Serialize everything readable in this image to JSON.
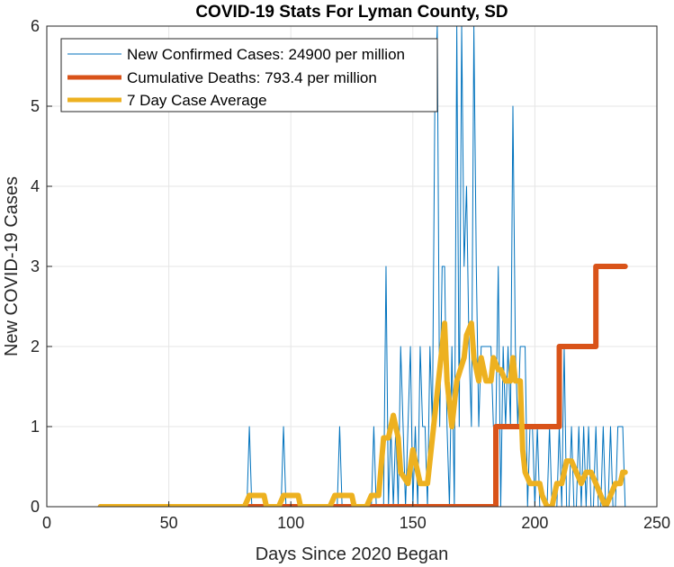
{
  "chart_data": {
    "type": "line",
    "title": "COVID-19 Stats For Lyman County, SD",
    "xlabel": "Days Since 2020 Began",
    "ylabel": "New COVID-19 Cases",
    "xlim": [
      0,
      250
    ],
    "ylim": [
      0,
      6
    ],
    "xticks": [
      0,
      50,
      100,
      150,
      200,
      250
    ],
    "yticks": [
      0,
      1,
      2,
      3,
      4,
      5,
      6
    ],
    "grid": true,
    "legend_position": "top-left",
    "series": [
      {
        "name": "New Confirmed Cases: 24900 per million",
        "color": "#0072BD",
        "x": [
          22,
          82,
          83,
          84,
          96,
          97,
          98,
          119,
          120,
          121,
          133,
          134,
          135,
          138,
          139,
          140,
          141,
          142,
          143,
          144,
          145,
          146,
          147,
          148,
          149,
          150,
          151,
          152,
          153,
          154,
          155,
          156,
          157,
          158,
          159,
          160,
          161,
          162,
          163,
          164,
          165,
          166,
          167,
          168,
          169,
          170,
          171,
          172,
          173,
          174,
          175,
          176,
          177,
          178,
          179,
          180,
          181,
          182,
          183,
          184,
          185,
          186,
          187,
          188,
          189,
          190,
          191,
          192,
          193,
          194,
          195,
          196,
          197,
          198,
          199,
          200,
          201,
          202,
          203,
          204,
          205,
          206,
          207,
          208,
          209,
          210,
          211,
          212,
          213,
          214,
          215,
          216,
          217,
          218,
          219,
          220,
          221,
          222,
          223,
          224,
          225,
          226,
          227,
          228,
          229,
          230,
          231,
          232,
          233,
          234,
          235,
          236,
          237
        ],
        "y": [
          0,
          0,
          1,
          0,
          0,
          1,
          0,
          0,
          1,
          0,
          0,
          1,
          0,
          0,
          3,
          0,
          1,
          0,
          1,
          0,
          2,
          1,
          0,
          1,
          2,
          0,
          1,
          0,
          2,
          1,
          1,
          0,
          2,
          1,
          5,
          6,
          1,
          3,
          3,
          1,
          0,
          2,
          0,
          6,
          1,
          6,
          3,
          4,
          2,
          1,
          6,
          3,
          1,
          2,
          2,
          2,
          2,
          2,
          1,
          1,
          3,
          0,
          2,
          1,
          2,
          1,
          5,
          2,
          1,
          2,
          2,
          2,
          0,
          1,
          1,
          0,
          1,
          0,
          0,
          0,
          0,
          1,
          0,
          0,
          0,
          1,
          0,
          2,
          0,
          0,
          1,
          0,
          0,
          1,
          0,
          1,
          0,
          1,
          0,
          0,
          1,
          0,
          0,
          1,
          0,
          0,
          1,
          0,
          0,
          1,
          1,
          1,
          0
        ]
      },
      {
        "name": "Cumulative Deaths: 793.4 per million",
        "color": "#D95319",
        "x": [
          22,
          184,
          184,
          210,
          210,
          225,
          225,
          237
        ],
        "y": [
          0,
          0,
          1,
          1,
          2,
          2,
          3,
          3
        ]
      },
      {
        "name": "7 Day Case Average",
        "color": "#EDB120",
        "x": [
          22,
          81,
          83,
          85,
          89,
          90,
          95,
          97,
          99,
          103,
          104,
          116,
          118,
          121,
          125,
          126,
          131,
          133,
          136,
          138,
          140,
          142,
          144,
          145,
          148,
          150,
          153,
          156,
          159,
          160,
          162,
          163,
          164,
          166,
          168,
          171,
          172,
          174,
          175,
          177,
          178,
          180,
          182,
          183,
          185,
          186,
          188,
          190,
          191,
          192,
          193,
          194,
          195,
          196,
          198,
          200,
          202,
          203,
          205,
          207,
          209,
          211,
          213,
          215,
          217,
          219,
          221,
          223,
          225,
          227,
          229,
          231,
          233,
          235,
          236,
          237
        ],
        "y": [
          0,
          0,
          0.14,
          0.14,
          0.14,
          0,
          0,
          0.14,
          0.14,
          0.14,
          0,
          0,
          0.14,
          0.14,
          0.14,
          0,
          0,
          0.14,
          0.14,
          0.86,
          0.86,
          1.14,
          0.86,
          0.43,
          0.29,
          0.71,
          0.29,
          0.29,
          1.14,
          1.43,
          2.0,
          2.29,
          1.57,
          1.0,
          1.57,
          1.86,
          2.14,
          2.29,
          1.86,
          1.57,
          1.86,
          1.57,
          1.57,
          1.86,
          1.71,
          1.71,
          1.57,
          1.57,
          1.86,
          1.57,
          1.57,
          1.57,
          0.71,
          0.43,
          0.29,
          0.29,
          0.29,
          0.14,
          0.0,
          0.0,
          0.29,
          0.29,
          0.57,
          0.57,
          0.43,
          0.29,
          0.43,
          0.43,
          0.29,
          0.14,
          0.0,
          0.14,
          0.29,
          0.29,
          0.43,
          0.43
        ]
      }
    ]
  }
}
